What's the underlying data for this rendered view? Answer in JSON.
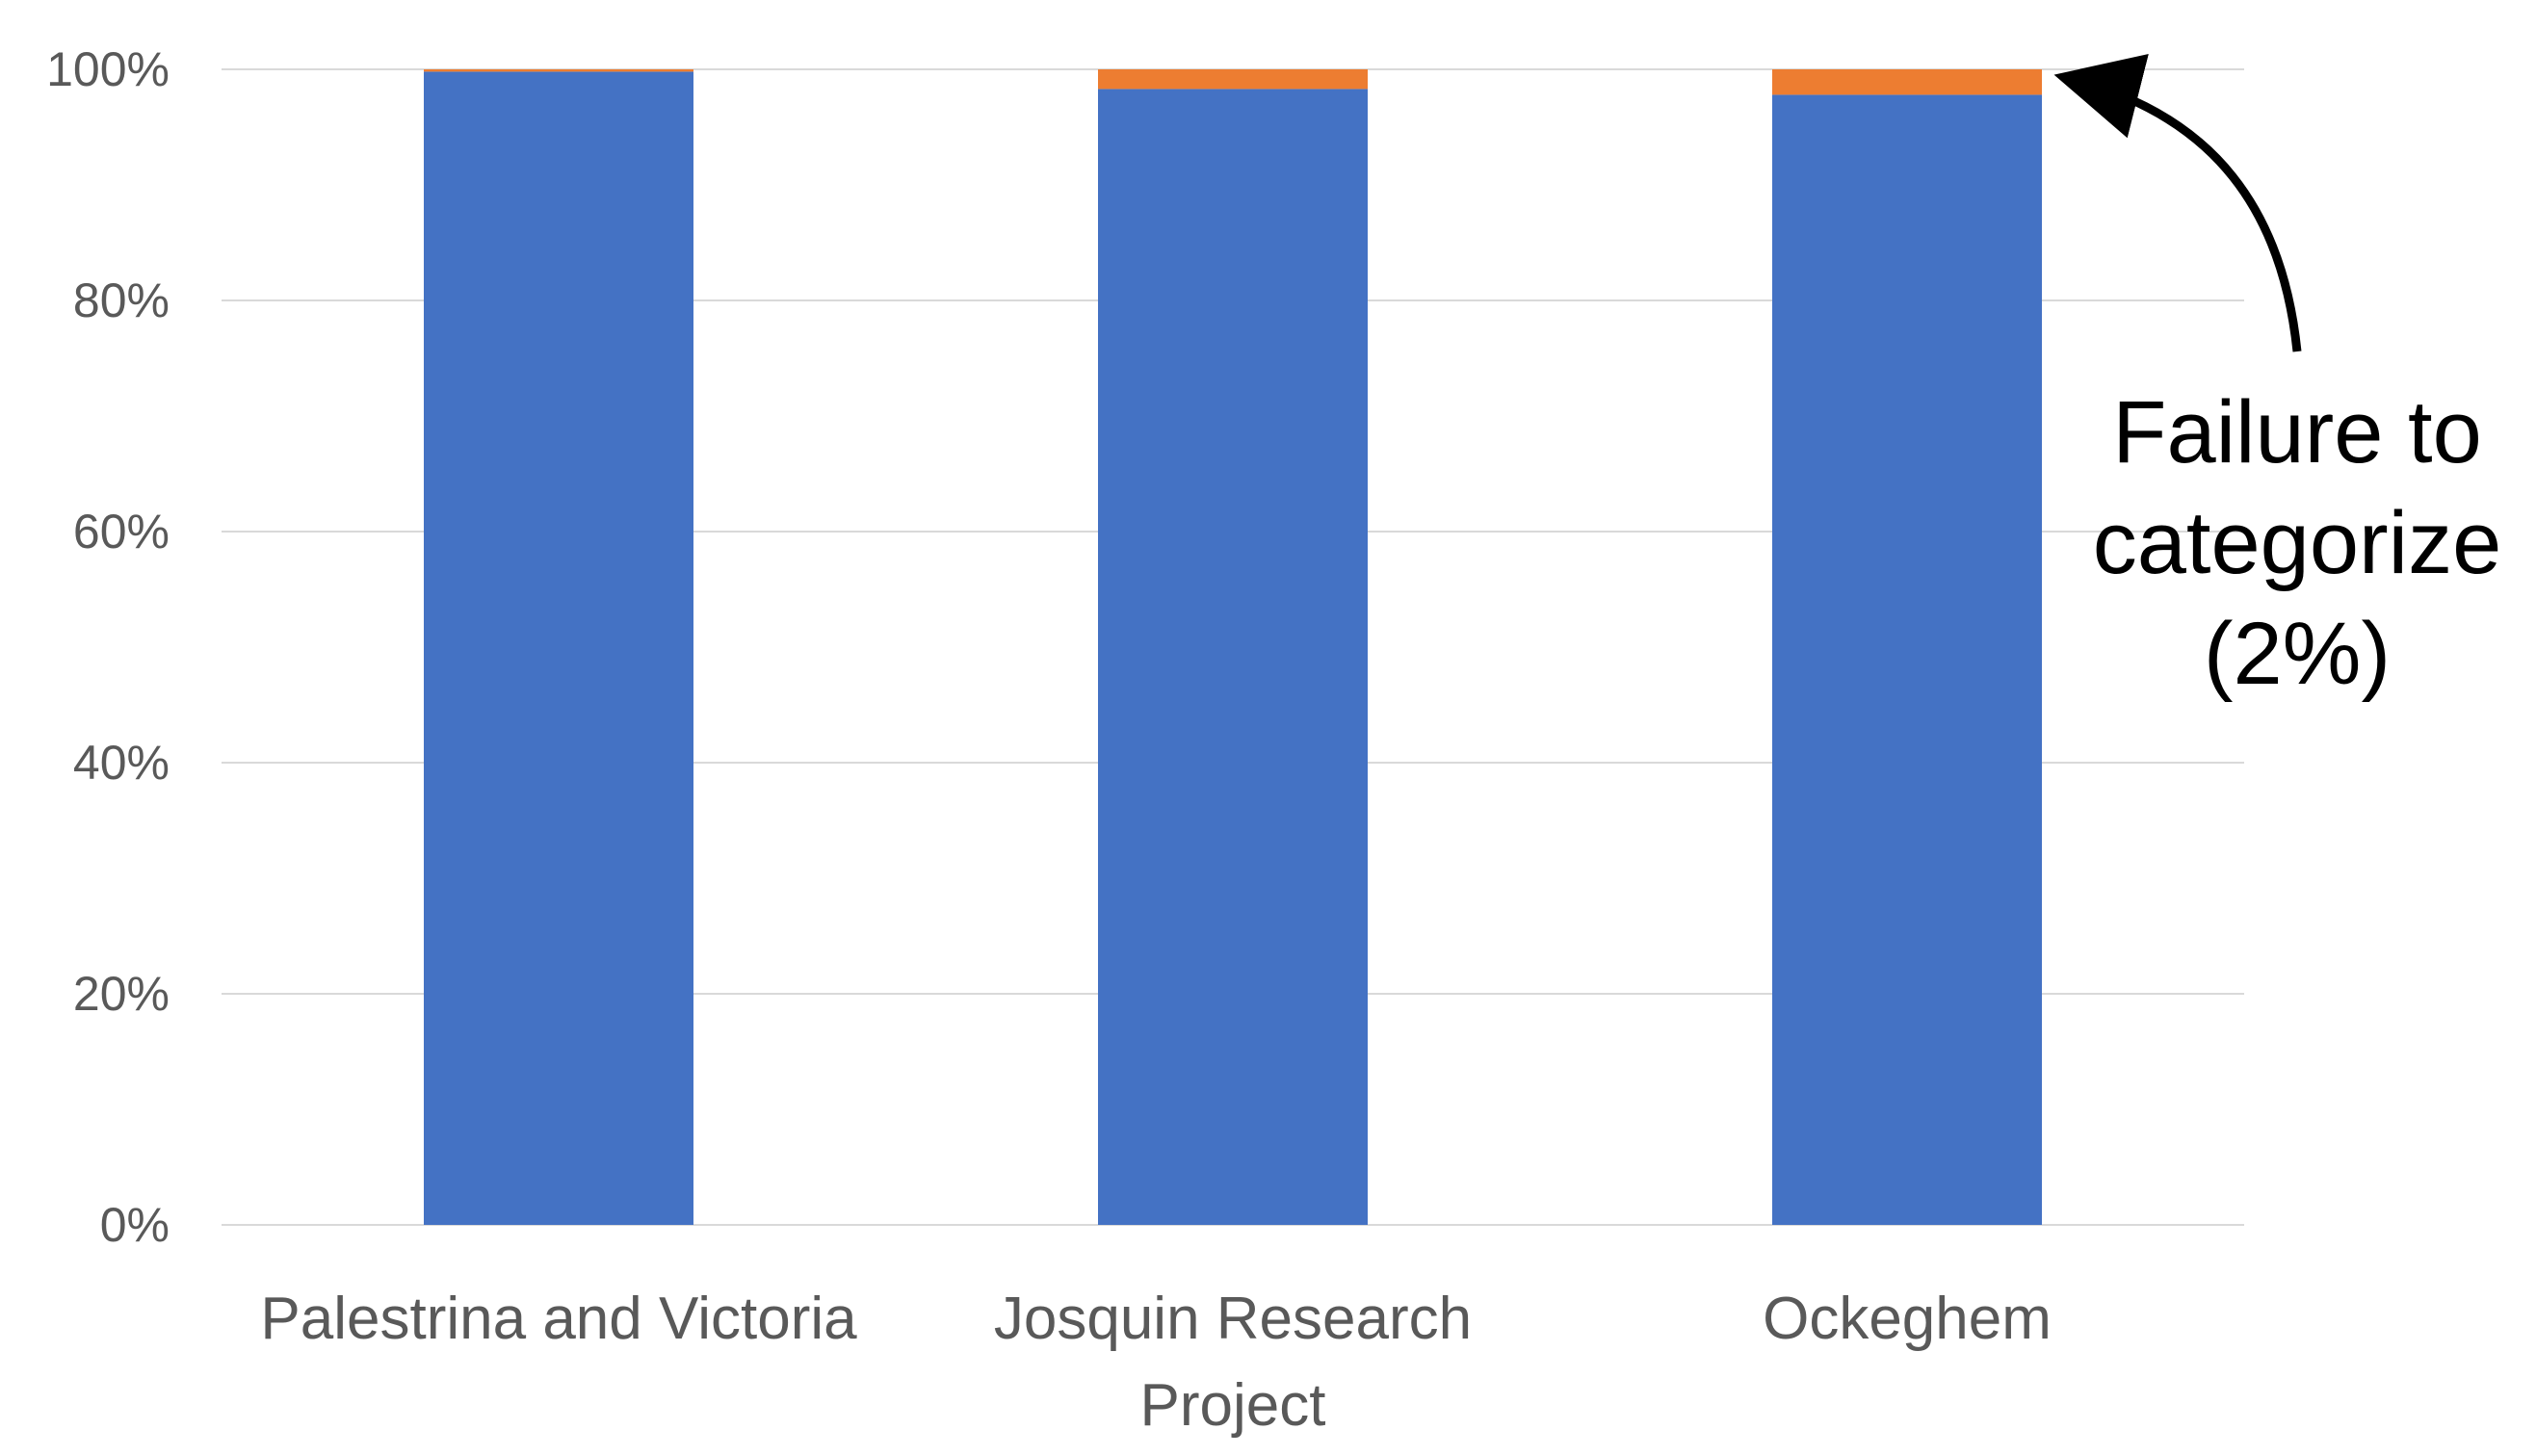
{
  "colors": {
    "background": "#ffffff",
    "series_main": "#4472c4",
    "series_failure": "#ed7d31",
    "gridline": "#d9d9d9",
    "axis_text": "#595959",
    "annotation": "#000000"
  },
  "chart_data": {
    "type": "bar",
    "stacked": true,
    "percent_stacked": true,
    "title": "",
    "xlabel": "",
    "ylabel": "",
    "ylim": [
      0,
      100
    ],
    "y_ticks": [
      0,
      20,
      40,
      60,
      80,
      100
    ],
    "y_tick_labels": [
      "0%",
      "20%",
      "40%",
      "60%",
      "80%",
      "100%"
    ],
    "grid": true,
    "legend": "none",
    "categories": [
      [
        "Palestrina and Victoria"
      ],
      [
        "Josquin Research",
        "Project"
      ],
      [
        "Ockeghem"
      ]
    ],
    "series": [
      {
        "values": [
          99.8,
          98.3,
          97.8
        ],
        "color": "#4472c4"
      },
      {
        "values": [
          0.2,
          1.7,
          2.2
        ],
        "color": "#ed7d31"
      }
    ],
    "annotation": {
      "lines": [
        "Failure to",
        "categorize",
        "(2%)"
      ],
      "target_category_index": 2,
      "target_value": 100,
      "icon": "curved-arrow-icon"
    }
  }
}
